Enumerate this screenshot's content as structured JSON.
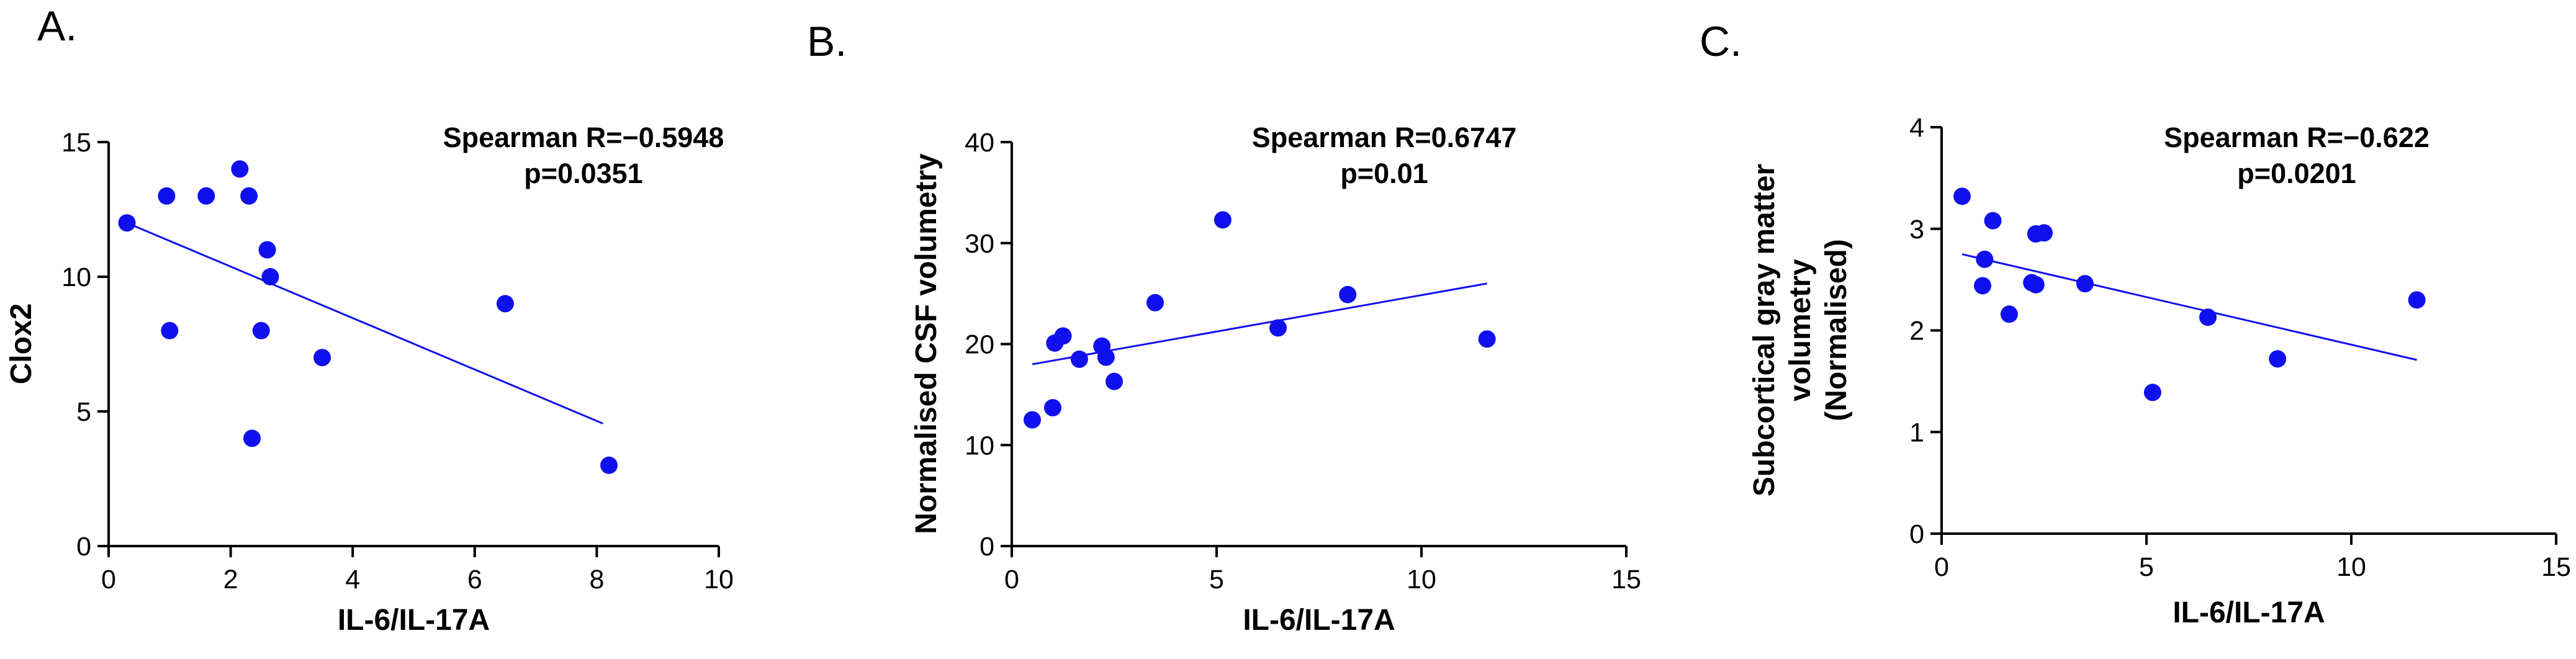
{
  "colors": {
    "points": "#1010ee",
    "fit_line": "#1010ee",
    "axes": "#000000"
  },
  "chart_data": [
    {
      "panel_label": "A.",
      "type": "scatter",
      "title": "",
      "xlabel": "IL-6/IL-17A",
      "ylabel": "Clox2",
      "xlim": [
        0,
        10
      ],
      "ylim": [
        0,
        15
      ],
      "xticks": [
        0,
        2,
        4,
        6,
        8,
        10
      ],
      "yticks": [
        0,
        5,
        10,
        15
      ],
      "points": [
        {
          "x": 0.3,
          "y": 12
        },
        {
          "x": 0.95,
          "y": 13
        },
        {
          "x": 1.0,
          "y": 8
        },
        {
          "x": 1.6,
          "y": 13
        },
        {
          "x": 2.15,
          "y": 14
        },
        {
          "x": 2.3,
          "y": 13
        },
        {
          "x": 2.35,
          "y": 4
        },
        {
          "x": 2.5,
          "y": 8
        },
        {
          "x": 2.6,
          "y": 11
        },
        {
          "x": 2.65,
          "y": 10
        },
        {
          "x": 3.5,
          "y": 7
        },
        {
          "x": 6.5,
          "y": 9
        },
        {
          "x": 8.2,
          "y": 3
        }
      ],
      "fit_line": {
        "x1": 0.3,
        "y1": 12.0,
        "x2": 8.1,
        "y2": 4.55
      },
      "annotation": [
        "Spearman R=−0.5948",
        "p=0.0351"
      ]
    },
    {
      "panel_label": "B.",
      "type": "scatter",
      "title": "",
      "xlabel": "IL-6/IL-17A",
      "ylabel": "Normalised CSF volumetry",
      "xlim": [
        0,
        15
      ],
      "ylim": [
        0,
        40
      ],
      "xticks": [
        0,
        5,
        10,
        15
      ],
      "yticks": [
        0,
        10,
        20,
        30,
        40
      ],
      "points": [
        {
          "x": 0.5,
          "y": 12.5
        },
        {
          "x": 1.0,
          "y": 13.7
        },
        {
          "x": 1.05,
          "y": 20.1
        },
        {
          "x": 1.25,
          "y": 20.8
        },
        {
          "x": 1.65,
          "y": 18.5
        },
        {
          "x": 2.2,
          "y": 19.8
        },
        {
          "x": 2.3,
          "y": 18.7
        },
        {
          "x": 2.5,
          "y": 16.3
        },
        {
          "x": 3.5,
          "y": 24.1
        },
        {
          "x": 5.15,
          "y": 32.3
        },
        {
          "x": 6.5,
          "y": 21.6
        },
        {
          "x": 8.2,
          "y": 24.9
        },
        {
          "x": 11.6,
          "y": 20.5
        }
      ],
      "fit_line": {
        "x1": 0.5,
        "y1": 18.0,
        "x2": 11.6,
        "y2": 26.0
      },
      "annotation": [
        "Spearman R=0.6747",
        "p=0.01"
      ]
    },
    {
      "panel_label": "C.",
      "type": "scatter",
      "title": "",
      "xlabel": "IL-6/IL-17A",
      "ylabel": [
        "Subcortical gray matter",
        "volumetry",
        "(Normalised)"
      ],
      "xlim": [
        0,
        15
      ],
      "ylim": [
        0,
        4
      ],
      "xticks": [
        0,
        5,
        10,
        15
      ],
      "yticks": [
        0,
        1,
        2,
        3,
        4
      ],
      "points": [
        {
          "x": 0.5,
          "y": 3.32
        },
        {
          "x": 1.0,
          "y": 2.44
        },
        {
          "x": 1.05,
          "y": 2.7
        },
        {
          "x": 1.25,
          "y": 3.08
        },
        {
          "x": 1.65,
          "y": 2.16
        },
        {
          "x": 2.2,
          "y": 2.47
        },
        {
          "x": 2.3,
          "y": 2.45
        },
        {
          "x": 2.3,
          "y": 2.95
        },
        {
          "x": 2.5,
          "y": 2.96
        },
        {
          "x": 3.5,
          "y": 2.46
        },
        {
          "x": 5.15,
          "y": 1.39
        },
        {
          "x": 6.5,
          "y": 2.13
        },
        {
          "x": 8.2,
          "y": 1.72
        },
        {
          "x": 11.6,
          "y": 2.3
        }
      ],
      "fit_line": {
        "x1": 0.5,
        "y1": 2.75,
        "x2": 11.6,
        "y2": 1.71
      },
      "annotation": [
        "Spearman R=−0.622",
        "p=0.0201"
      ]
    }
  ]
}
